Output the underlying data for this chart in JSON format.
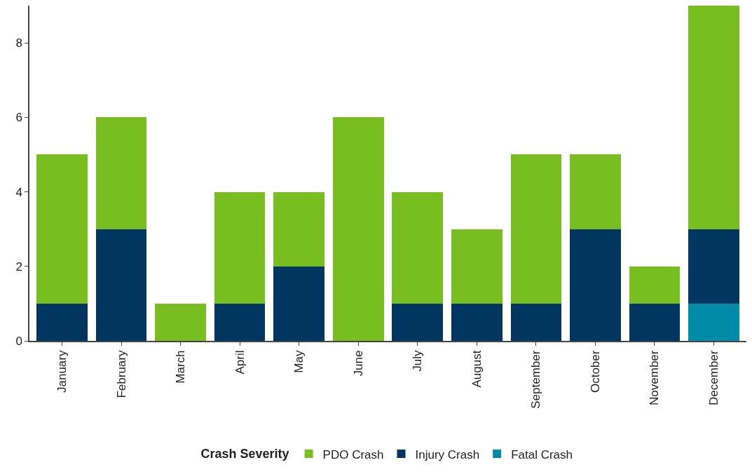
{
  "chart_data": {
    "type": "bar",
    "stacked": true,
    "legend_title": "Crash Severity",
    "categories": [
      "January",
      "February",
      "March",
      "April",
      "May",
      "June",
      "July",
      "August",
      "September",
      "October",
      "November",
      "December"
    ],
    "series": [
      {
        "name": "Fatal Crash",
        "color": "#008ca8",
        "values": [
          0,
          0,
          0,
          0,
          0,
          0,
          0,
          0,
          0,
          0,
          0,
          1
        ]
      },
      {
        "name": "Injury Crash",
        "color": "#003660",
        "values": [
          1,
          3,
          0,
          1,
          2,
          0,
          1,
          1,
          1,
          3,
          1,
          2
        ]
      },
      {
        "name": "PDO Crash",
        "color": "#78be20",
        "values": [
          4,
          3,
          1,
          3,
          2,
          6,
          3,
          2,
          4,
          2,
          1,
          6
        ]
      }
    ],
    "ylim": [
      0,
      9
    ],
    "yticks": [
      0,
      2,
      4,
      6,
      8
    ],
    "grid": false,
    "legend": "bottom"
  }
}
